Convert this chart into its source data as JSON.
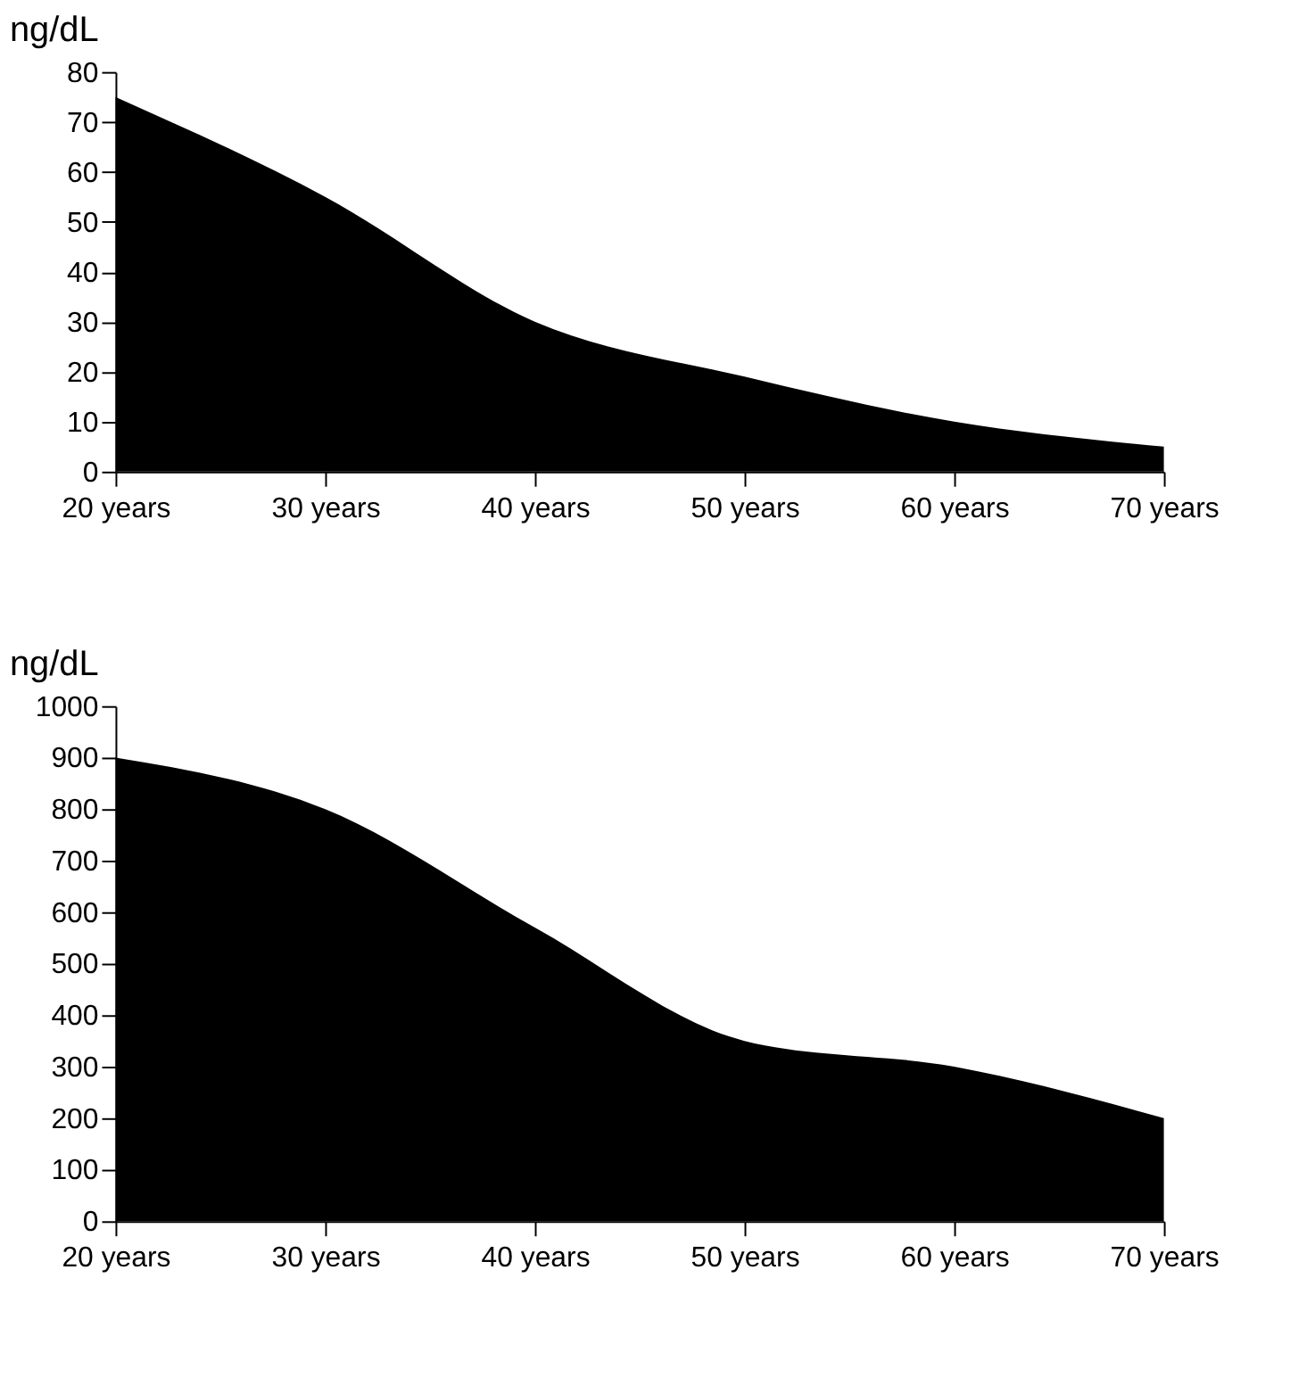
{
  "chart_data": [
    {
      "type": "area",
      "ylabel": "ng/dL",
      "categories": [
        "20 years",
        "30 years",
        "40 years",
        "50 years",
        "60 years",
        "70 years"
      ],
      "values": [
        75,
        55,
        30,
        19,
        10,
        5
      ],
      "color": "#000000",
      "ylim": [
        0,
        80
      ],
      "yticks": [
        0,
        10,
        20,
        30,
        40,
        50,
        60,
        70,
        80
      ],
      "grid": false
    },
    {
      "type": "area",
      "ylabel": "ng/dL",
      "categories": [
        "20 years",
        "30 years",
        "40 years",
        "50 years",
        "60 years",
        "70 years"
      ],
      "values": [
        900,
        800,
        570,
        350,
        300,
        200
      ],
      "color": "#000000",
      "ylim": [
        0,
        1000
      ],
      "yticks": [
        0,
        100,
        200,
        300,
        400,
        500,
        600,
        700,
        800,
        900,
        1000
      ],
      "grid": false
    }
  ]
}
